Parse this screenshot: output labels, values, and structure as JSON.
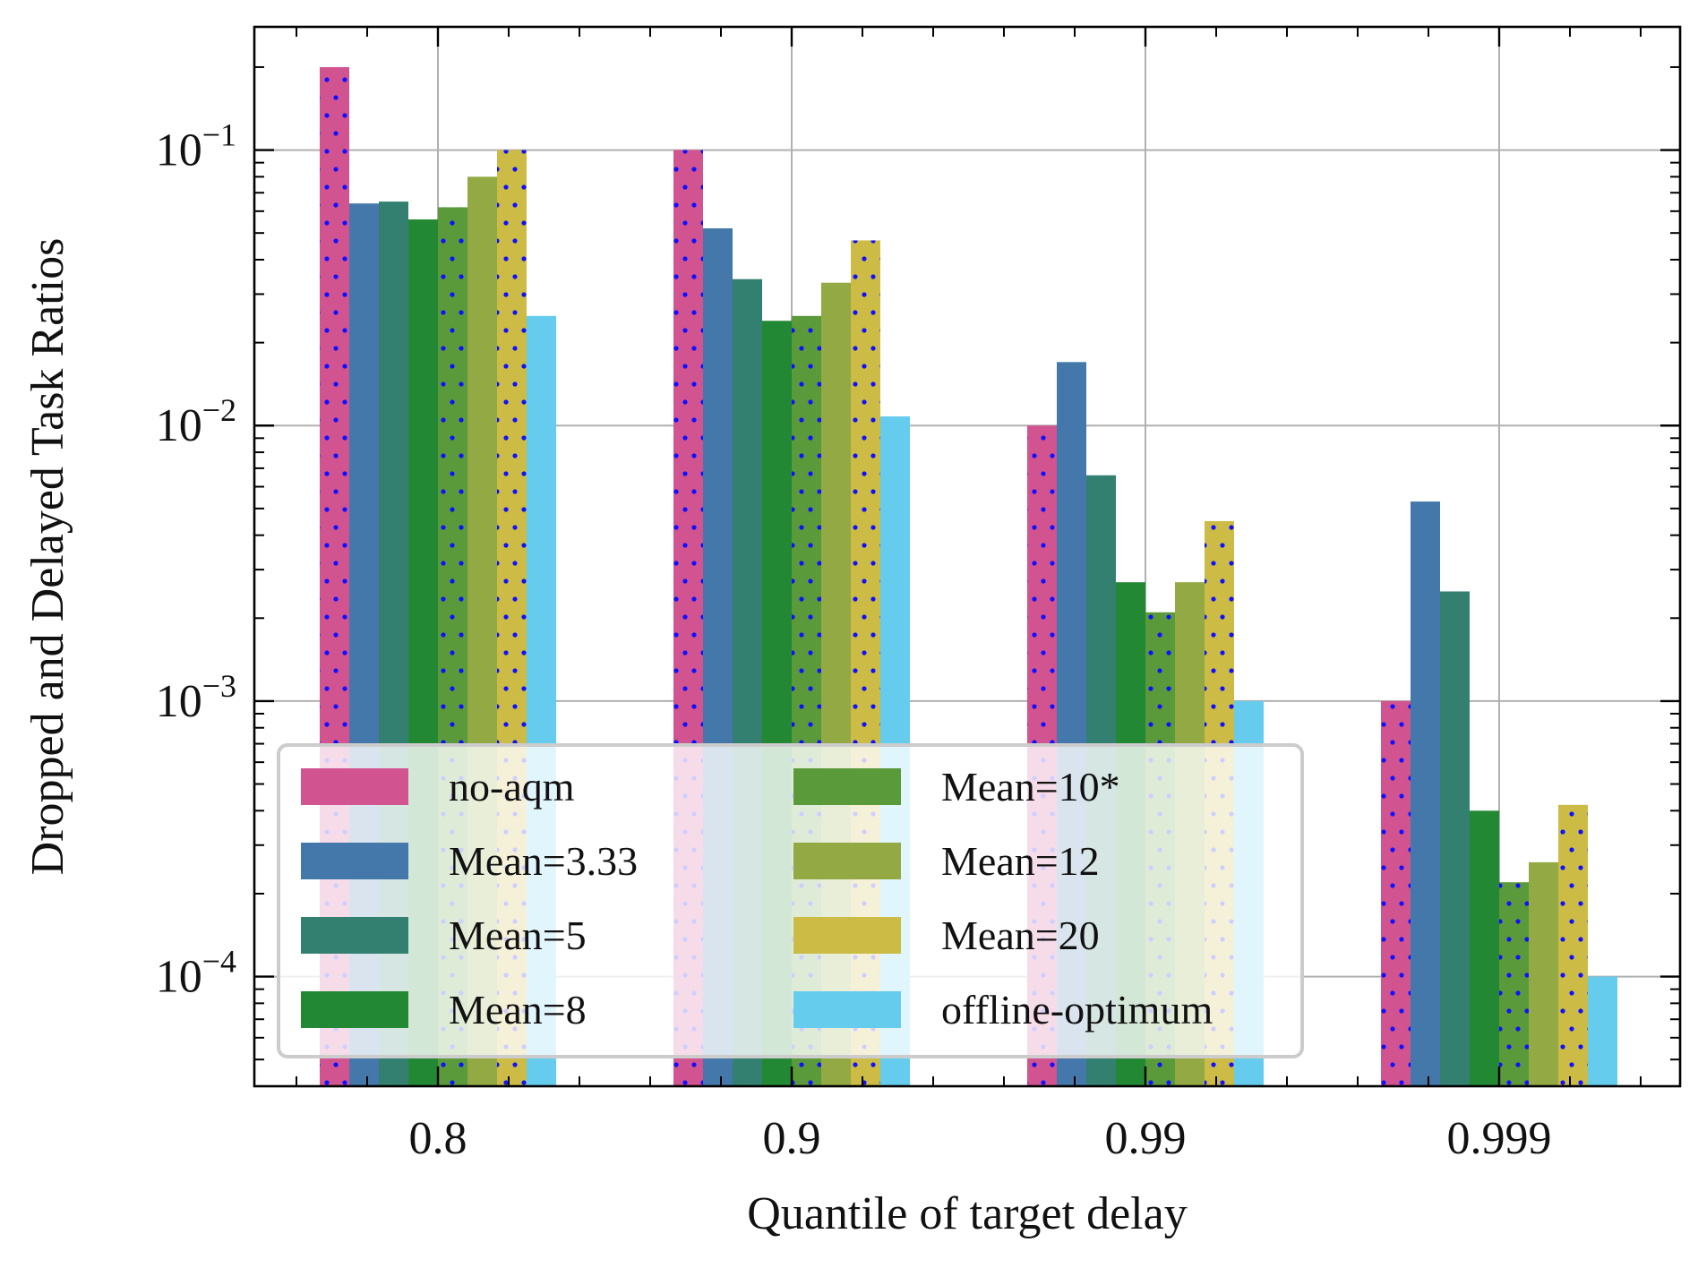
{
  "chart_data": {
    "type": "bar",
    "title": "",
    "xlabel": "Quantile of target delay",
    "ylabel": "Dropped and Delayed Task Ratios",
    "yscale": "log",
    "ylim": [
      4e-05,
      0.28
    ],
    "y_ticks": [
      {
        "value": 0.1,
        "base": "10",
        "exp": "−1"
      },
      {
        "value": 0.01,
        "base": "10",
        "exp": "−2"
      },
      {
        "value": 0.001,
        "base": "10",
        "exp": "−3"
      },
      {
        "value": 0.0001,
        "base": "10",
        "exp": "−4"
      }
    ],
    "grid": true,
    "legend_position": "lower-left",
    "legend_columns": 2,
    "categories": [
      "0.8",
      "0.9",
      "0.99",
      "0.999"
    ],
    "series": [
      {
        "name": "no-aqm",
        "color": "#d1538f",
        "hatch": "dots",
        "values": [
          0.2,
          0.1,
          0.01,
          0.001
        ]
      },
      {
        "name": "Mean=3.33",
        "color": "#4478aa",
        "hatch": "none",
        "values": [
          0.064,
          0.052,
          0.017,
          0.0053
        ]
      },
      {
        "name": "Mean=5",
        "color": "#338070",
        "hatch": "none",
        "values": [
          0.065,
          0.034,
          0.0066,
          0.0025
        ]
      },
      {
        "name": "Mean=8",
        "color": "#238833",
        "hatch": "none",
        "values": [
          0.056,
          0.024,
          0.0027,
          0.0004
        ]
      },
      {
        "name": "Mean=10*",
        "color": "#5a9a3a",
        "hatch": "dots",
        "values": [
          0.062,
          0.025,
          0.0021,
          0.00022
        ]
      },
      {
        "name": "Mean=12",
        "color": "#93a943",
        "hatch": "none",
        "values": [
          0.08,
          0.033,
          0.0027,
          0.00026
        ]
      },
      {
        "name": "Mean=20",
        "color": "#ccbb44",
        "hatch": "dots",
        "values": [
          0.1,
          0.047,
          0.0045,
          0.00042
        ]
      },
      {
        "name": "offline-optimum",
        "color": "#66ccee",
        "hatch": "none",
        "values": [
          0.025,
          0.0108,
          0.001,
          0.0001
        ]
      }
    ]
  }
}
